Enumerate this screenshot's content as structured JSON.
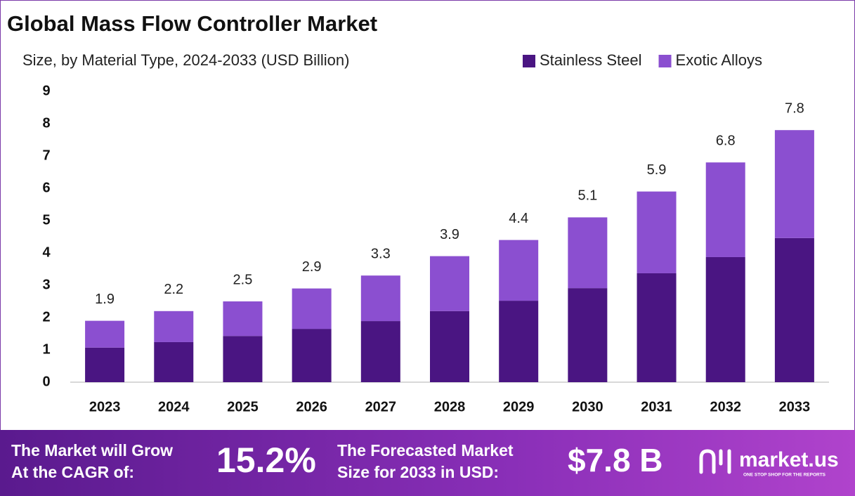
{
  "chart_data": {
    "type": "stacked-bar",
    "title": "Global Mass Flow Controller Market",
    "subtitle": "Size, by Material Type, 2024-2033 (USD Billion)",
    "categories": [
      "2023",
      "2024",
      "2025",
      "2026",
      "2027",
      "2028",
      "2029",
      "2030",
      "2031",
      "2032",
      "2033"
    ],
    "series": [
      {
        "name": "Stainless Steel",
        "color": "#4a1582",
        "values": [
          1.07,
          1.24,
          1.43,
          1.65,
          1.89,
          2.2,
          2.52,
          2.91,
          3.37,
          3.87,
          4.46
        ]
      },
      {
        "name": "Exotic Alloys",
        "color": "#8b4fd0",
        "values": [
          0.83,
          0.96,
          1.07,
          1.25,
          1.41,
          1.7,
          1.88,
          2.19,
          2.53,
          2.93,
          3.34
        ]
      }
    ],
    "totals": [
      1.9,
      2.2,
      2.5,
      2.9,
      3.3,
      3.9,
      4.4,
      5.1,
      5.9,
      6.8,
      7.8
    ],
    "ylim": [
      0,
      9
    ],
    "yticks": [
      0,
      1,
      2,
      3,
      4,
      5,
      6,
      7,
      8,
      9
    ],
    "grid": false,
    "legend": "top-right"
  },
  "footer": {
    "cagr_label": [
      "The Market will Grow",
      "At the CAGR of:"
    ],
    "cagr": "15.2%",
    "size_label": [
      "The Forecasted Market",
      "Size for 2033 in USD:"
    ],
    "size": "$7.8 B",
    "brand": "market.us",
    "tagline": "ONE STOP SHOP FOR THE REPORTS"
  }
}
